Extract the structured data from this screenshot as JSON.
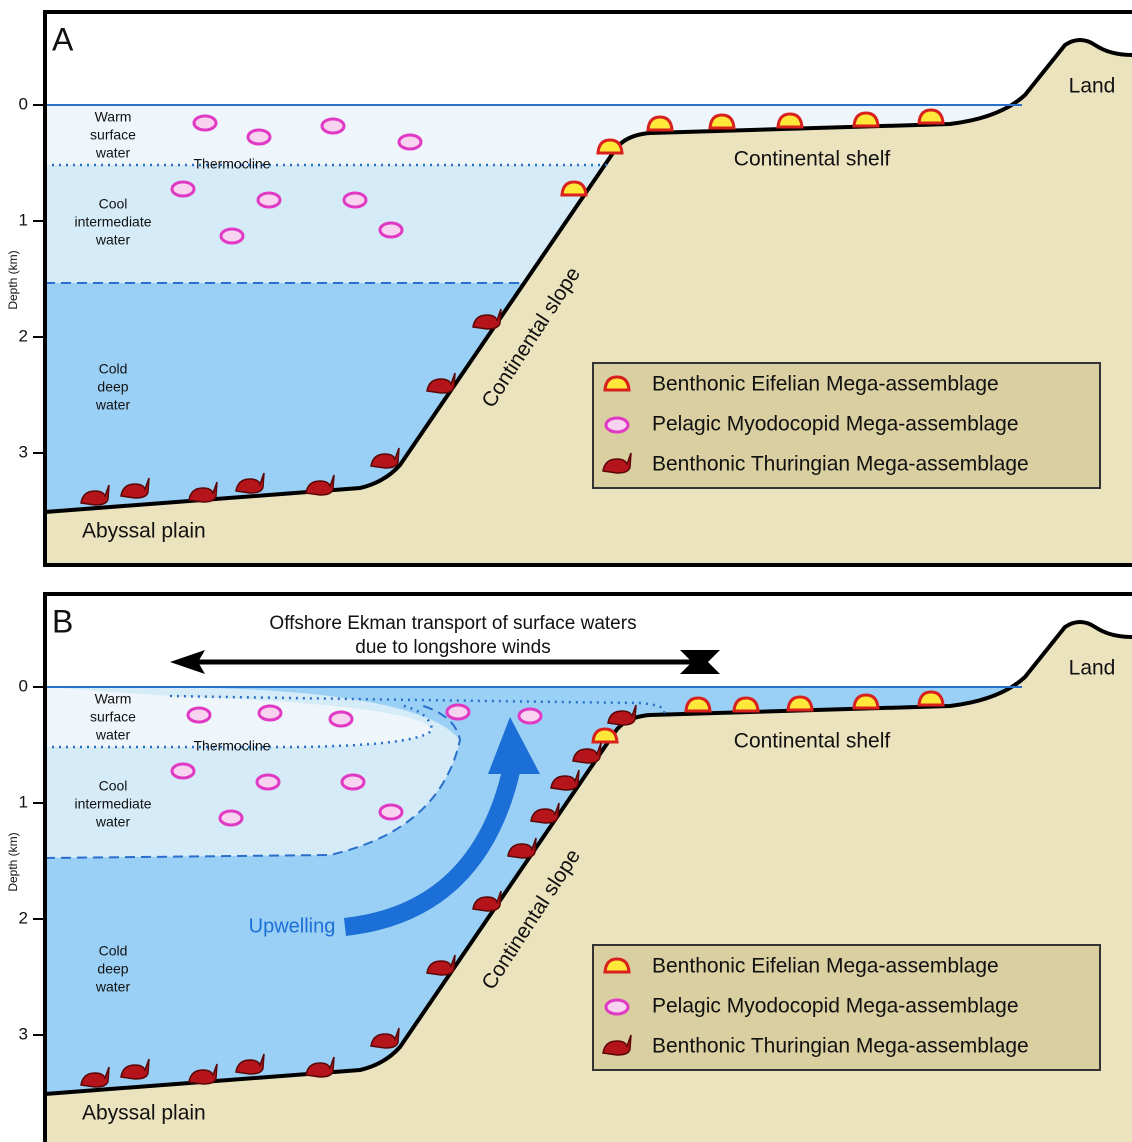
{
  "panels": [
    {
      "label": "A",
      "axis_title": "Depth (km)",
      "ticks": [
        0,
        1,
        2,
        3
      ],
      "water_labels": [
        [
          "Warm",
          "surface",
          "water"
        ],
        [
          "Cool",
          "intermediate",
          "water"
        ],
        [
          "Cold",
          "deep",
          "water"
        ]
      ],
      "thermocline": "Thermocline",
      "shelf": "Continental shelf",
      "slope": "Continental slope",
      "abyssal": "Abyssal plain",
      "land": "Land",
      "legend": [
        "Benthonic Eifelian Mega-assemblage",
        "Pelagic Myodocopid Mega-assemblage",
        "Benthonic Thuringian Mega-assemblage"
      ]
    },
    {
      "label": "B",
      "axis_title": "Depth (km)",
      "ticks": [
        0,
        1,
        2,
        3
      ],
      "water_labels": [
        [
          "Warm",
          "surface",
          "water"
        ],
        [
          "Cool",
          "intermediate",
          "water"
        ],
        [
          "Cold",
          "deep",
          "water"
        ]
      ],
      "thermocline": "Thermocline",
      "shelf": "Continental shelf",
      "slope": "Continental slope",
      "abyssal": "Abyssal plain",
      "land": "Land",
      "legend": [
        "Benthonic Eifelian Mega-assemblage",
        "Pelagic Myodocopid Mega-assemblage",
        "Benthonic Thuringian Mega-assemblage"
      ],
      "ekman": [
        "Offshore Ekman transport of surface waters",
        "due to longshore winds"
      ],
      "upwelling": "Upwelling"
    }
  ]
}
